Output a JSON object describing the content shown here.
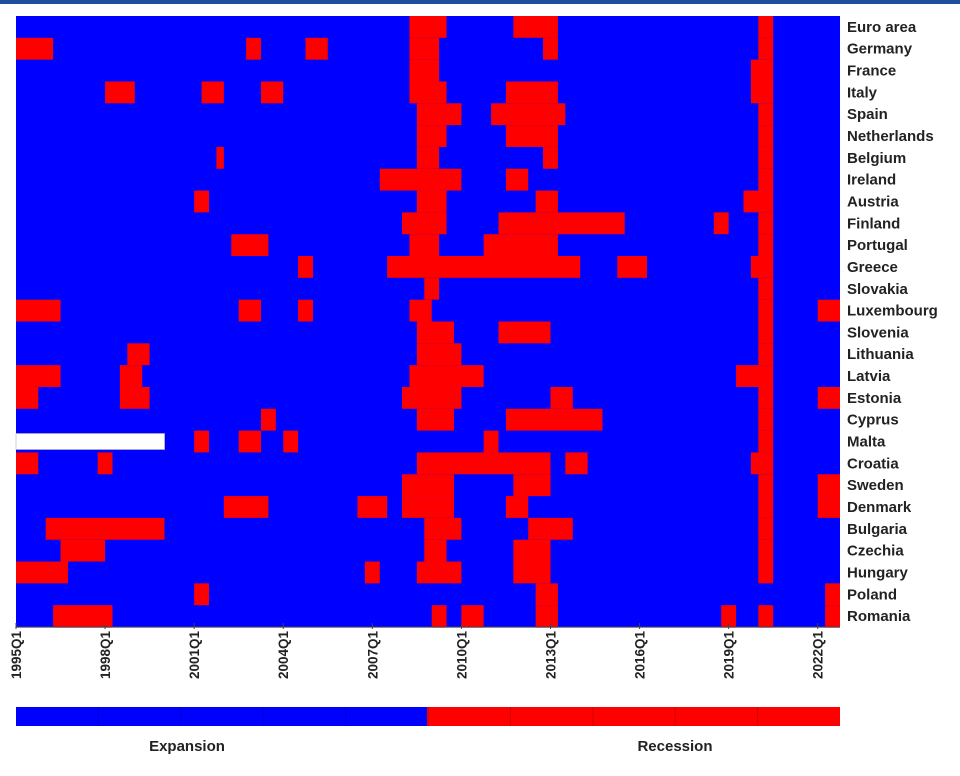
{
  "chart_data": {
    "type": "heatmap",
    "title": "",
    "xlabel": "",
    "ylabel": "",
    "x_start": "1995Q1",
    "x_end": "2022Q3",
    "x_ticks": [
      "1995Q1",
      "1998Q1",
      "2001Q1",
      "2004Q1",
      "2007Q1",
      "2010Q1",
      "2013Q1",
      "2016Q1",
      "2019Q1",
      "2022Q1"
    ],
    "legend": [
      {
        "label": "Expansion",
        "value": 0,
        "color": "#0000ff"
      },
      {
        "label": "Recession",
        "value": 1,
        "color": "#ff0000"
      }
    ],
    "missing_color": "#ffffff",
    "rows": [
      {
        "name": "Euro area",
        "recession": [
          [
            "2008Q2",
            "2009Q2"
          ],
          [
            "2011Q4",
            "2013Q1"
          ],
          [
            "2020Q1",
            "2020Q2"
          ]
        ]
      },
      {
        "name": "Germany",
        "recession": [
          [
            "1995Q1",
            "1996Q1"
          ],
          [
            "2002Q4",
            "2003Q1"
          ],
          [
            "2004Q4",
            "2005Q2"
          ],
          [
            "2008Q2",
            "2009Q1"
          ],
          [
            "2012Q4",
            "2013Q1"
          ],
          [
            "2020Q1",
            "2020Q2"
          ]
        ]
      },
      {
        "name": "France",
        "recession": [
          [
            "2008Q2",
            "2009Q1"
          ],
          [
            "2019Q4",
            "2020Q2"
          ]
        ]
      },
      {
        "name": "Italy",
        "recession": [
          [
            "1998Q1",
            "1998Q4"
          ],
          [
            "2001Q2",
            "2001Q4"
          ],
          [
            "2003Q2",
            "2003Q4"
          ],
          [
            "2008Q2",
            "2009Q2"
          ],
          [
            "2011Q3",
            "2013Q1"
          ],
          [
            "2019Q4",
            "2020Q2"
          ]
        ]
      },
      {
        "name": "Spain",
        "recession": [
          [
            "2008Q3",
            "2009Q4"
          ],
          [
            "2011Q1",
            "2013Q2"
          ],
          [
            "2020Q1",
            "2020Q2"
          ]
        ]
      },
      {
        "name": "Netherlands",
        "recession": [
          [
            "2008Q3",
            "2009Q2"
          ],
          [
            "2011Q3",
            "2013Q1"
          ],
          [
            "2020Q1",
            "2020Q2"
          ]
        ]
      },
      {
        "name": "Belgium",
        "recession": [
          [
            "2001Q4",
            "2001Q4"
          ],
          [
            "2008Q3",
            "2009Q1"
          ],
          [
            "2012Q4",
            "2013Q1"
          ],
          [
            "2020Q1",
            "2020Q2"
          ]
        ]
      },
      {
        "name": "Ireland",
        "recession": [
          [
            "2007Q2",
            "2009Q4"
          ],
          [
            "2011Q3",
            "2012Q1"
          ],
          [
            "2020Q1",
            "2020Q2"
          ]
        ]
      },
      {
        "name": "Austria",
        "recession": [
          [
            "2001Q1",
            "2001Q2"
          ],
          [
            "2008Q3",
            "2009Q2"
          ],
          [
            "2012Q3",
            "2013Q1"
          ],
          [
            "2019Q3",
            "2020Q2"
          ]
        ]
      },
      {
        "name": "Finland",
        "recession": [
          [
            "2008Q1",
            "2009Q2"
          ],
          [
            "2011Q2",
            "2015Q2"
          ],
          [
            "2018Q3",
            "2018Q4"
          ],
          [
            "2020Q1",
            "2020Q2"
          ]
        ]
      },
      {
        "name": "Portugal",
        "recession": [
          [
            "2002Q2",
            "2003Q2"
          ],
          [
            "2008Q2",
            "2009Q1"
          ],
          [
            "2010Q4",
            "2013Q1"
          ],
          [
            "2020Q1",
            "2020Q2"
          ]
        ]
      },
      {
        "name": "Greece",
        "recession": [
          [
            "2004Q3",
            "2004Q4"
          ],
          [
            "2007Q3",
            "2013Q4"
          ],
          [
            "2015Q2",
            "2016Q1"
          ],
          [
            "2019Q4",
            "2020Q2"
          ]
        ]
      },
      {
        "name": "Slovakia",
        "recession": [
          [
            "2008Q4",
            "2009Q1"
          ],
          [
            "2020Q1",
            "2020Q2"
          ]
        ]
      },
      {
        "name": "Luxembourg",
        "recession": [
          [
            "1995Q1",
            "1996Q2"
          ],
          [
            "2002Q3",
            "2003Q1"
          ],
          [
            "2004Q3",
            "2004Q4"
          ],
          [
            "2008Q2",
            "2008Q4"
          ],
          [
            "2020Q1",
            "2020Q2"
          ],
          [
            "2022Q1",
            "2022Q3"
          ]
        ]
      },
      {
        "name": "Slovenia",
        "recession": [
          [
            "2008Q3",
            "2009Q3"
          ],
          [
            "2011Q2",
            "2012Q4"
          ],
          [
            "2020Q1",
            "2020Q2"
          ]
        ]
      },
      {
        "name": "Lithuania",
        "recession": [
          [
            "1998Q4",
            "1999Q2"
          ],
          [
            "2008Q3",
            "2009Q4"
          ],
          [
            "2020Q1",
            "2020Q2"
          ]
        ]
      },
      {
        "name": "Latvia",
        "recession": [
          [
            "1995Q1",
            "1996Q2"
          ],
          [
            "1998Q3",
            "1999Q1"
          ],
          [
            "2008Q2",
            "2010Q3"
          ],
          [
            "2019Q2",
            "2020Q2"
          ]
        ]
      },
      {
        "name": "Estonia",
        "recession": [
          [
            "1995Q1",
            "1995Q3"
          ],
          [
            "1998Q3",
            "1999Q2"
          ],
          [
            "2008Q1",
            "2009Q4"
          ],
          [
            "2013Q1",
            "2013Q3"
          ],
          [
            "2020Q1",
            "2020Q2"
          ],
          [
            "2022Q1",
            "2022Q3"
          ]
        ]
      },
      {
        "name": "Cyprus",
        "recession": [
          [
            "2003Q2",
            "2003Q3"
          ],
          [
            "2008Q3",
            "2009Q3"
          ],
          [
            "2011Q3",
            "2014Q3"
          ],
          [
            "2020Q1",
            "2020Q2"
          ]
        ]
      },
      {
        "name": "Malta",
        "missing": [
          [
            "1995Q1",
            "1999Q4"
          ]
        ],
        "recession": [
          [
            "2001Q1",
            "2001Q2"
          ],
          [
            "2002Q3",
            "2003Q1"
          ],
          [
            "2004Q1",
            "2004Q2"
          ],
          [
            "2010Q4",
            "2011Q1"
          ],
          [
            "2020Q1",
            "2020Q2"
          ]
        ]
      },
      {
        "name": "Croatia",
        "recession": [
          [
            "1995Q1",
            "1995Q3"
          ],
          [
            "1997Q4",
            "1998Q1"
          ],
          [
            "2008Q3",
            "2012Q4"
          ],
          [
            "2013Q3",
            "2014Q1"
          ],
          [
            "2019Q4",
            "2020Q2"
          ]
        ]
      },
      {
        "name": "Sweden",
        "recession": [
          [
            "2008Q1",
            "2009Q3"
          ],
          [
            "2011Q4",
            "2012Q4"
          ],
          [
            "2020Q1",
            "2020Q2"
          ],
          [
            "2022Q1",
            "2022Q3"
          ]
        ]
      },
      {
        "name": "Denmark",
        "recession": [
          [
            "2002Q1",
            "2003Q2"
          ],
          [
            "2006Q3",
            "2007Q2"
          ],
          [
            "2008Q1",
            "2009Q3"
          ],
          [
            "2011Q3",
            "2012Q1"
          ],
          [
            "2020Q1",
            "2020Q2"
          ],
          [
            "2022Q1",
            "2022Q3"
          ]
        ]
      },
      {
        "name": "Bulgaria",
        "recession": [
          [
            "1996Q1",
            "1999Q4"
          ],
          [
            "2008Q4",
            "2009Q4"
          ],
          [
            "2012Q2",
            "2013Q3"
          ],
          [
            "2020Q1",
            "2020Q2"
          ]
        ]
      },
      {
        "name": "Czechia",
        "recession": [
          [
            "1996Q3",
            "1997Q4"
          ],
          [
            "2008Q4",
            "2009Q2"
          ],
          [
            "2011Q4",
            "2012Q4"
          ],
          [
            "2020Q1",
            "2020Q2"
          ]
        ]
      },
      {
        "name": "Hungary",
        "recession": [
          [
            "1995Q1",
            "1996Q3"
          ],
          [
            "2006Q4",
            "2007Q1"
          ],
          [
            "2008Q3",
            "2009Q4"
          ],
          [
            "2011Q4",
            "2012Q4"
          ],
          [
            "2020Q1",
            "2020Q2"
          ]
        ]
      },
      {
        "name": "Poland",
        "recession": [
          [
            "2001Q1",
            "2001Q2"
          ],
          [
            "2012Q3",
            "2013Q1"
          ],
          [
            "2022Q2",
            "2022Q3"
          ]
        ]
      },
      {
        "name": "Romania",
        "recession": [
          [
            "1996Q2",
            "1998Q1"
          ],
          [
            "2009Q1",
            "2009Q2"
          ],
          [
            "2010Q1",
            "2010Q3"
          ],
          [
            "2012Q3",
            "2013Q1"
          ],
          [
            "2018Q4",
            "2019Q1"
          ],
          [
            "2020Q1",
            "2020Q2"
          ],
          [
            "2022Q2",
            "2022Q3"
          ]
        ]
      }
    ]
  }
}
